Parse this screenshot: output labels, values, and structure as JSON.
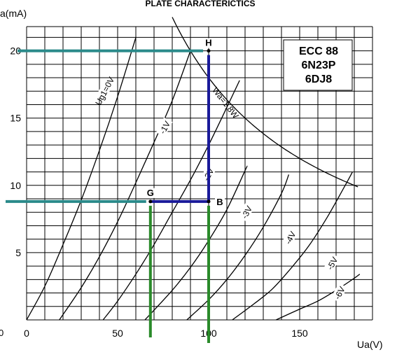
{
  "chart_data": {
    "type": "line",
    "title": "PLATE CHARACTERICTICS",
    "xlabel": "Ua(V)",
    "ylabel": "a(mA)",
    "xlim": [
      0,
      190
    ],
    "ylim": [
      0,
      21.8
    ],
    "x_ticks": [
      {
        "value": 0,
        "label": "0"
      },
      {
        "value": 50,
        "label": "50"
      },
      {
        "value": 100,
        "label": "100"
      },
      {
        "value": 150,
        "label": "150"
      }
    ],
    "y_ticks": [
      {
        "value": 5,
        "label": "5"
      },
      {
        "value": 10,
        "label": "10"
      },
      {
        "value": 15,
        "label": "15"
      },
      {
        "value": 20,
        "label": "20"
      }
    ],
    "origin_label": "0",
    "grid": true,
    "grid_step": {
      "x": 10,
      "y": 1
    },
    "tube_box": [
      "ECC 88",
      "6N23P",
      "6DJ8"
    ],
    "series": [
      {
        "label": "Ug1=0V",
        "label_at": [
          43,
          17
        ],
        "points": [
          [
            0,
            0
          ],
          [
            10,
            2.5
          ],
          [
            20,
            5.6
          ],
          [
            30,
            8.9
          ],
          [
            40,
            12.6
          ],
          [
            50,
            16.6
          ],
          [
            60,
            21.0
          ]
        ]
      },
      {
        "label": "-1V",
        "label_at": [
          76,
          14.3
        ],
        "points": [
          [
            18,
            0
          ],
          [
            30,
            2.4
          ],
          [
            40,
            4.7
          ],
          [
            50,
            7.3
          ],
          [
            60,
            10.2
          ],
          [
            70,
            13.2
          ],
          [
            80,
            16.3
          ],
          [
            90,
            20.0
          ]
        ]
      },
      {
        "label": "-2V",
        "label_at": [
          100,
          10.8
        ],
        "points": [
          [
            42,
            0
          ],
          [
            50,
            1.4
          ],
          [
            60,
            3.4
          ],
          [
            70,
            5.6
          ],
          [
            80,
            8.0
          ],
          [
            90,
            10.4
          ],
          [
            100,
            13.0
          ],
          [
            110,
            15.8
          ],
          [
            117,
            17.8
          ]
        ]
      },
      {
        "label": "-3V",
        "label_at": [
          121,
          8.0
        ],
        "points": [
          [
            65,
            0
          ],
          [
            80,
            2.2
          ],
          [
            90,
            3.9
          ],
          [
            100,
            5.9
          ],
          [
            110,
            8.2
          ],
          [
            120,
            11.1
          ],
          [
            121,
            11.4
          ]
        ]
      },
      {
        "label": "-4V",
        "label_at": [
          145,
          6.1
        ],
        "points": [
          [
            88,
            0
          ],
          [
            100,
            1.5
          ],
          [
            110,
            3.0
          ],
          [
            120,
            4.8
          ],
          [
            130,
            6.9
          ],
          [
            140,
            9.4
          ],
          [
            144,
            10.8
          ]
        ]
      },
      {
        "label": "-5V",
        "label_at": [
          168,
          4.2
        ],
        "points": [
          [
            113,
            0
          ],
          [
            125,
            1.2
          ],
          [
            135,
            2.3
          ],
          [
            145,
            3.8
          ],
          [
            155,
            5.5
          ],
          [
            165,
            7.6
          ],
          [
            175,
            10.0
          ],
          [
            179,
            11.0
          ]
        ]
      },
      {
        "label": "-6V",
        "label_at": [
          172,
          2.0
        ],
        "points": [
          [
            137,
            0
          ],
          [
            150,
            0.8
          ],
          [
            160,
            1.4
          ],
          [
            170,
            2.2
          ],
          [
            180,
            3.1
          ],
          [
            183,
            3.4
          ]
        ]
      }
    ],
    "power_curve": {
      "label": "Wa=1,8W",
      "watts": 1.8,
      "x_from": 80,
      "x_to": 182
    },
    "load_lines": [
      {
        "name": "H",
        "x": 100,
        "y": 20.0
      },
      {
        "name": "G",
        "x": 68,
        "y": 8.8
      },
      {
        "name": "B",
        "x": 100,
        "y": 8.8
      }
    ],
    "colors": {
      "grid": "#000000",
      "curve": "#000000",
      "teal": "#2a8a8a",
      "navy": "#1a1a9a",
      "green": "#2a8a2a"
    }
  }
}
